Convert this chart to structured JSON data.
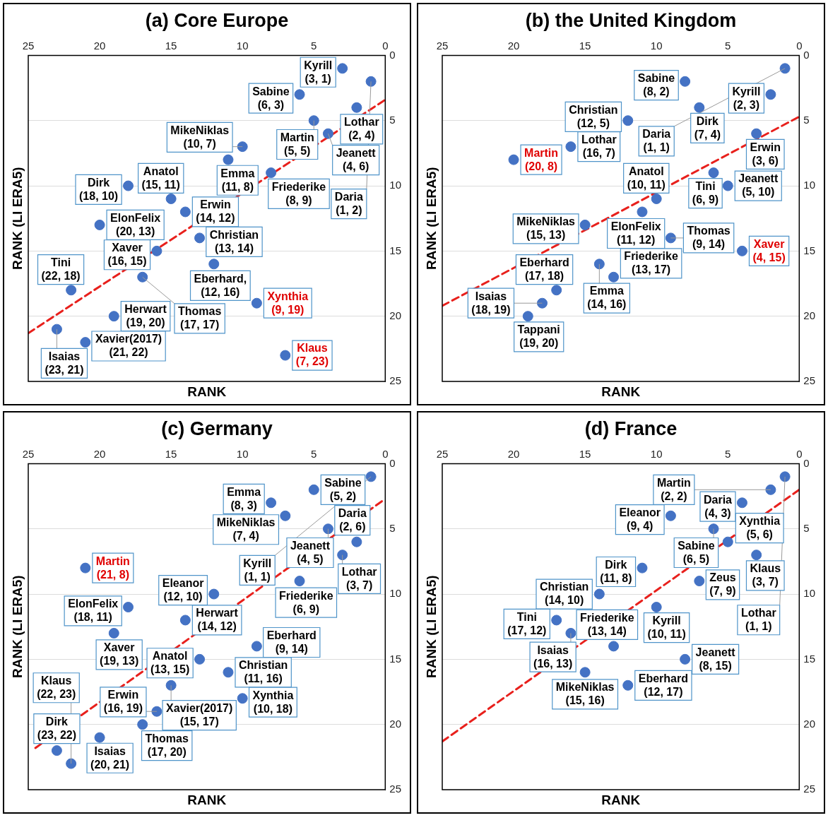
{
  "chart_data": [
    {
      "type": "scatter",
      "title": "(a) Core Europe",
      "xlabel": "RANK",
      "ylabel": "RANK (LI ERA5)",
      "xlim": [
        25,
        0
      ],
      "ylim": [
        25,
        0
      ],
      "xticks": [
        25,
        20,
        15,
        10,
        5,
        0
      ],
      "yticks": [
        0,
        5,
        10,
        15,
        20,
        25
      ],
      "grid": "y",
      "series": [
        {
          "type": "scatter",
          "marker": "circle",
          "color": "#4472c4",
          "x": [
            3,
            1,
            6,
            2,
            10,
            5,
            15,
            11,
            4,
            18,
            14,
            20,
            16,
            13,
            8,
            22,
            12,
            17,
            23,
            19,
            21
          ],
          "values": [
            1,
            2,
            3,
            4,
            7,
            5,
            11,
            8,
            6,
            10,
            12,
            13,
            15,
            14,
            9,
            18,
            16,
            17,
            21,
            20,
            22
          ],
          "value_labels": [
            "Kyrill (3, 1)",
            "Daria (1, 2)",
            "Sabine (6, 3)",
            "Lothar (2, 4)",
            "MikeNiklas (10, 7)",
            "Martin (5, 5)",
            "Anatol (15, 11)",
            "Emma (11, 8)",
            "Jeanett (4, 6)",
            "Dirk (18, 10)",
            "Erwin (14, 12)",
            "ElonFelix (20, 13)",
            "Xaver (16, 15)",
            "Christian (13, 14)",
            "Friederike (8, 9)",
            "Tini (22, 18)",
            "Eberhard, (12, 16)",
            "Thomas (17, 17)",
            "Isaias (23, 21)",
            "Herwart (19, 20)",
            "Xavier(2017) (21, 22)"
          ]
        },
        {
          "type": "scatter",
          "marker": "circle",
          "color": "#4472c4",
          "x": [
            9,
            7
          ],
          "values": [
            19,
            23
          ],
          "value_labels": [
            "Xynthia (9, 19)",
            "Klaus (7, 23)"
          ]
        },
        {
          "type": "line",
          "marker": "none",
          "color": "#e8201c",
          "line_style": "dashed",
          "x": [
            25,
            0
          ],
          "values": [
            21.3,
            3.4
          ]
        }
      ]
    },
    {
      "type": "scatter",
      "title": "(b) the United Kingdom",
      "xlabel": "RANK",
      "ylabel": "RANK (LI ERA5)",
      "xlim": [
        25,
        0
      ],
      "ylim": [
        25,
        0
      ],
      "xticks": [
        25,
        20,
        15,
        10,
        5,
        0
      ],
      "yticks": [
        0,
        5,
        10,
        15,
        20,
        25
      ],
      "grid": "y",
      "series": [
        {
          "type": "scatter",
          "marker": "circle",
          "color": "#4472c4",
          "x": [
            8,
            1,
            2,
            7,
            12,
            16,
            6,
            3,
            5,
            15,
            10,
            11,
            9,
            14,
            13,
            19,
            17,
            18
          ],
          "values": [
            2,
            1,
            3,
            4,
            5,
            7,
            9,
            6,
            10,
            13,
            11,
            12,
            14,
            16,
            17,
            20,
            18,
            19
          ],
          "value_labels": [
            "Sabine (8, 2)",
            "Daria (1, 1)",
            "Kyrill (2, 3)",
            "Dirk (7, 4)",
            "Christian (12, 5)",
            "Lothar (16, 7)",
            "Tini (6, 9)",
            "Erwin (3, 6)",
            "Jeanett (5, 10)",
            "MikeNiklas (15, 13)",
            "Anatol (10, 11)",
            "ElonFelix (11, 12)",
            "Thomas (9, 14)",
            "Emma (14, 16)",
            "Friederike (13, 17)",
            "Tappani (19, 20)",
            "Eberhard (17, 18)",
            "Isaias (18, 19)"
          ]
        },
        {
          "type": "scatter",
          "marker": "circle",
          "color": "#4472c4",
          "x": [
            20,
            4
          ],
          "values": [
            8,
            15
          ],
          "value_labels": [
            "Martin (20, 8)",
            "Xaver (4, 15)"
          ]
        },
        {
          "type": "line",
          "marker": "none",
          "color": "#e8201c",
          "line_style": "dashed",
          "x": [
            25,
            0
          ],
          "values": [
            19.2,
            4.7
          ]
        }
      ]
    },
    {
      "type": "scatter",
      "title": "(c) Germany",
      "xlabel": "RANK",
      "ylabel": "RANK (LI ERA5)",
      "xlim": [
        25,
        0
      ],
      "ylim": [
        25,
        0
      ],
      "xticks": [
        25,
        20,
        15,
        10,
        5,
        0
      ],
      "yticks": [
        0,
        5,
        10,
        15,
        20,
        25
      ],
      "grid": "y",
      "series": [
        {
          "type": "scatter",
          "marker": "circle",
          "color": "#4472c4",
          "x": [
            7,
            5,
            1,
            8,
            2,
            4,
            3,
            12,
            6,
            18,
            14,
            19,
            13,
            9,
            11,
            16,
            15,
            10,
            20,
            17,
            23,
            22
          ],
          "values": [
            4,
            2,
            1,
            3,
            6,
            5,
            7,
            10,
            9,
            11,
            12,
            13,
            15,
            14,
            16,
            19,
            17,
            18,
            21,
            20,
            22,
            23
          ],
          "value_labels": [
            "MikeNiklas (7, 4)",
            "Sabine (5, 2)",
            "Kyrill (1, 1)",
            "Emma (8, 3)",
            "Daria (2, 6)",
            "Jeanett (4, 5)",
            "Lothar (3, 7)",
            "Eleanor (12, 10)",
            "Friederike (6, 9)",
            "ElonFelix (18, 11)",
            "Herwart (14, 12)",
            "Xaver (19, 13)",
            "Anatol (13, 15)",
            "Eberhard (9, 14)",
            "Christian (11, 16)",
            "Erwin (16, 19)",
            "Xavier(2017) (15, 17)",
            "Xynthia (10, 18)",
            "Isaias (20, 21)",
            "Thomas (17, 20)",
            "Dirk (23, 22)",
            "Klaus (22, 23)"
          ]
        },
        {
          "type": "scatter",
          "marker": "circle",
          "color": "#4472c4",
          "x": [
            21
          ],
          "values": [
            8
          ],
          "value_labels": [
            "Martin (21, 8)"
          ]
        },
        {
          "type": "line",
          "marker": "none",
          "color": "#e8201c",
          "line_style": "dashed",
          "x": [
            24.5,
            0
          ],
          "values": [
            21.8,
            2.7
          ]
        }
      ]
    },
    {
      "type": "scatter",
      "title": "(d) France",
      "xlabel": "RANK",
      "ylabel": "RANK (LI ERA5)",
      "xlim": [
        25,
        0
      ],
      "ylim": [
        25,
        0
      ],
      "xticks": [
        25,
        20,
        15,
        10,
        5,
        0
      ],
      "yticks": [
        0,
        5,
        10,
        15,
        20,
        25
      ],
      "grid": "y",
      "series": [
        {
          "type": "scatter",
          "marker": "circle",
          "color": "#4472c4",
          "x": [
            1,
            2,
            4,
            9,
            6,
            5,
            11,
            3,
            14,
            7,
            10,
            17,
            16,
            13,
            8,
            15,
            12
          ],
          "values": [
            1,
            2,
            3,
            4,
            5,
            6,
            8,
            7,
            10,
            9,
            11,
            12,
            13,
            14,
            15,
            16,
            17
          ],
          "value_labels": [
            "Lothar (1, 1)",
            "Martin (2, 2)",
            "Daria (4, 3)",
            "Eleanor (9, 4)",
            "Sabine (6, 5)",
            "Xynthia (5, 6)",
            "Dirk (11, 8)",
            "Klaus (3, 7)",
            "Christian (14, 10)",
            "Zeus (7, 9)",
            "Kyrill (10, 11)",
            "Tini (17, 12)",
            "Isaias (16, 13)",
            "Friederike (13, 14)",
            "Jeanett (8, 15)",
            "MikeNiklas (15, 16)",
            "Eberhard (12, 17)"
          ]
        },
        {
          "type": "line",
          "marker": "none",
          "color": "#e8201c",
          "line_style": "dashed",
          "x": [
            25,
            0
          ],
          "values": [
            21.3,
            2.0
          ]
        }
      ]
    }
  ]
}
